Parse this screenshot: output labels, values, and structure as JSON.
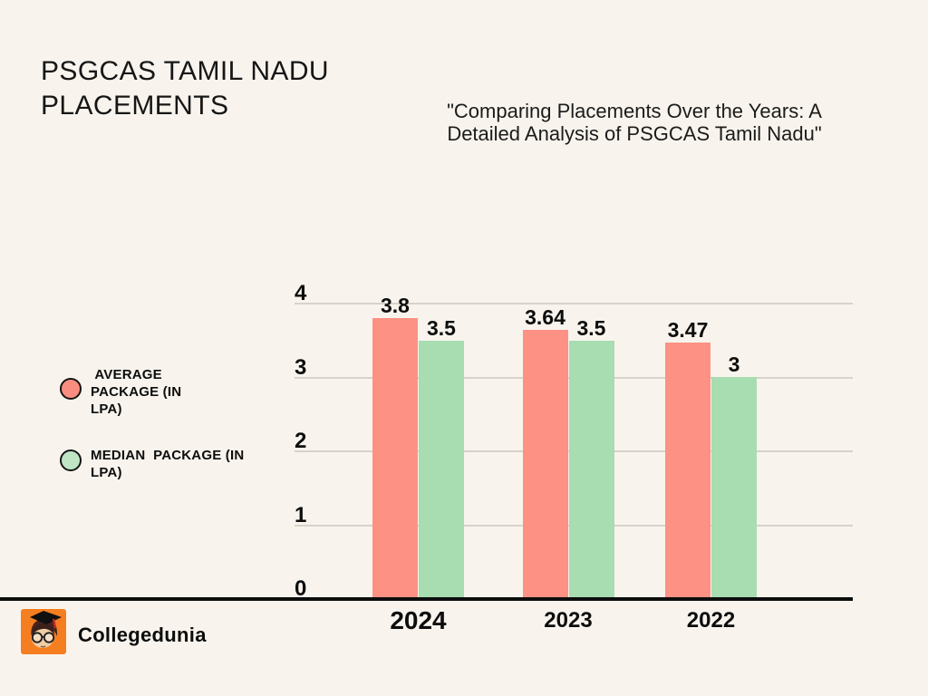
{
  "colors": {
    "background": "#F8F4ED",
    "axis": "#0D0D0D",
    "gridline": "#D7D2CB",
    "average_bar": "#FC9184",
    "median_bar": "#A8DCB1",
    "brand_orange": "#F57E20"
  },
  "header": {
    "title_lines": [
      "PSGCAS TAMIL NADU",
      "PLACEMENTS"
    ],
    "subtitle_lines": [
      "\"Comparing Placements Over the Years: A",
      "Detailed Analysis of PSGCAS Tamil Nadu\""
    ]
  },
  "legend": {
    "items": [
      {
        "label": " AVERAGE PACKAGE (IN LPA)",
        "swatch_color": "#F98D7F"
      },
      {
        "label": "MEDIAN  PACKAGE (IN LPA)",
        "swatch_color": "#BFE5C5"
      }
    ]
  },
  "footer": {
    "brand": "Collegedunia"
  },
  "chart_data": {
    "type": "bar",
    "categories": [
      "2024",
      "2023",
      "2022"
    ],
    "series": [
      {
        "name": "AVERAGE PACKAGE (IN LPA)",
        "color": "#FC9184",
        "values": [
          3.8,
          3.64,
          3.47
        ]
      },
      {
        "name": "MEDIAN PACKAGE (IN LPA)",
        "color": "#A8DCB1",
        "values": [
          3.5,
          3.5,
          3
        ]
      }
    ],
    "title": "PSGCAS TAMIL NADU PLACEMENTS",
    "xlabel": "",
    "ylabel": "",
    "ylim": [
      0,
      4
    ],
    "yticks": [
      0,
      1,
      2,
      3,
      4
    ],
    "grid": true,
    "legend_position": "left",
    "value_labels": true
  }
}
